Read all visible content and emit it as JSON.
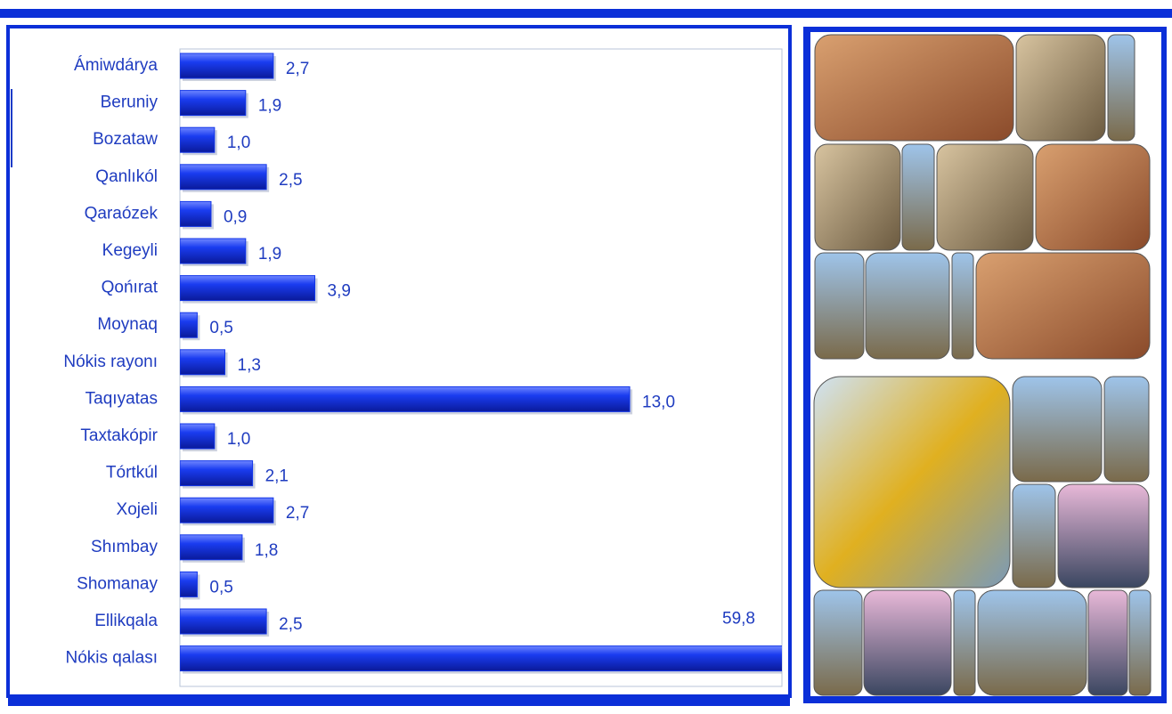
{
  "chart_data": {
    "type": "barh",
    "categories": [
      "Ámiwdárya",
      "Beruniy",
      "Bozataw",
      "Qanlıkól",
      "Qaraózek",
      "Kegeyli",
      "Qońırat",
      "Moynaq",
      "Nókis rayonı",
      "Taqıyatas",
      "Taxtakópir",
      "Tórtkúl",
      "Xojeli",
      "Shımbay",
      "Shomanay",
      "Ellikqala",
      "Nókis qalası"
    ],
    "values": [
      2.7,
      1.9,
      1.0,
      2.5,
      0.9,
      1.9,
      3.9,
      0.5,
      1.3,
      13.0,
      1.0,
      2.1,
      2.7,
      1.8,
      0.5,
      2.5,
      59.8
    ],
    "value_labels": [
      "2,7",
      "1,9",
      "1,0",
      "2,5",
      "0,9",
      "1,9",
      "3,9",
      "0,5",
      "1,3",
      "13,0",
      "1,0",
      "2,1",
      "2,7",
      "1,8",
      "0,5",
      "2,5",
      "59,8"
    ],
    "color": "#1336e8",
    "xlim": [
      0,
      17.4
    ]
  }
}
